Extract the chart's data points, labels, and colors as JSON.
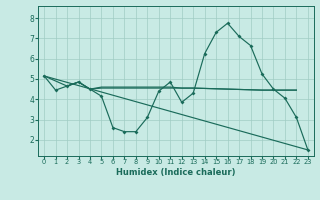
{
  "background_color": "#c8eae4",
  "grid_color": "#a0ccc4",
  "line_color": "#1a6b5a",
  "xlabel": "Humidex (Indice chaleur)",
  "xlim": [
    -0.5,
    23.5
  ],
  "ylim": [
    1.2,
    8.6
  ],
  "yticks": [
    2,
    3,
    4,
    5,
    6,
    7,
    8
  ],
  "xticks": [
    0,
    1,
    2,
    3,
    4,
    5,
    6,
    7,
    8,
    9,
    10,
    11,
    12,
    13,
    14,
    15,
    16,
    17,
    18,
    19,
    20,
    21,
    22,
    23
  ],
  "line1_x": [
    0,
    1,
    2,
    3,
    4,
    5,
    6,
    7,
    8,
    9,
    10,
    11,
    12,
    13,
    14,
    15,
    16,
    17,
    18,
    19,
    20,
    21,
    22,
    23
  ],
  "line1_y": [
    5.15,
    4.45,
    4.65,
    4.85,
    4.5,
    4.15,
    2.6,
    2.4,
    2.4,
    3.1,
    4.4,
    4.85,
    3.85,
    4.3,
    6.25,
    7.3,
    7.75,
    7.1,
    6.65,
    5.25,
    4.5,
    4.05,
    3.1,
    1.5
  ],
  "line2_x": [
    0,
    2,
    3,
    4,
    5,
    10,
    11,
    12,
    13,
    19,
    20,
    21,
    22
  ],
  "line2_y": [
    5.15,
    4.65,
    4.85,
    4.5,
    4.55,
    4.55,
    4.55,
    4.55,
    4.55,
    4.45,
    4.45,
    4.45,
    4.45
  ],
  "line3_x": [
    2,
    3,
    4,
    5,
    10,
    11,
    12,
    13,
    19,
    20,
    22
  ],
  "line3_y": [
    4.65,
    4.85,
    4.5,
    4.6,
    4.6,
    4.6,
    4.55,
    4.55,
    4.45,
    4.45,
    4.45
  ],
  "line4_x": [
    0,
    23
  ],
  "line4_y": [
    5.15,
    1.5
  ]
}
